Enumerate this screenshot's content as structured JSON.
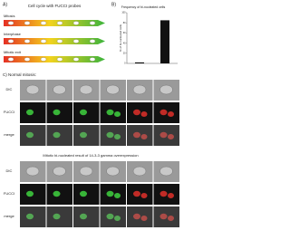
{
  "panel_a": {
    "label": "A)",
    "title": "Cell cycle with FUCCI probes",
    "rows": [
      "Mitosis",
      "Interphase",
      "Mitotic exit"
    ]
  },
  "panel_b": {
    "label": "B)",
    "chart": {
      "type": "bar",
      "title": "Frequency of bi-nucleated cells",
      "y_label": "% of bi-nucleated cells",
      "values": [
        2,
        85
      ],
      "ylim": [
        0,
        100
      ],
      "yticks": [
        0,
        20,
        40,
        60,
        80,
        100
      ],
      "color": "#111111"
    }
  },
  "panel_c": {
    "label": "C)",
    "title": "Normal mitosis:",
    "rows": [
      "DIC",
      "FUCCI",
      "merge"
    ]
  },
  "panel_d": {
    "title": "Mitotic bi-nucleated result of 14-3-3 gamma overexpression",
    "rows": [
      "DIC",
      "FUCCI",
      "merge"
    ]
  }
}
